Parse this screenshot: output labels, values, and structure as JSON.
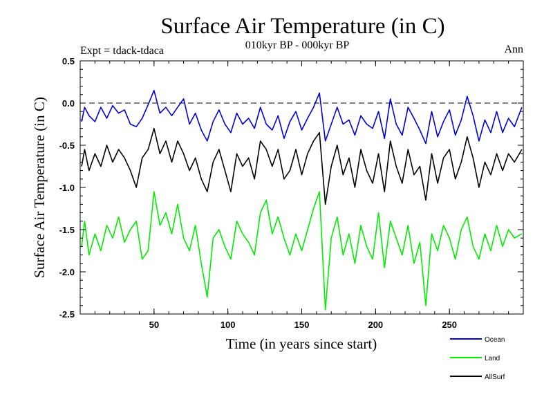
{
  "chart_data": {
    "type": "line",
    "title": "Surface Air Temperature (in C)",
    "subtitle": "010kyr BP - 000kyr BP",
    "experiment_label": "Expt = tdack-tdaca",
    "season_label": "Ann",
    "xlabel": "Time (in years since start)",
    "ylabel": "Surface Air Temperature (in C)",
    "xlim": [
      0,
      300
    ],
    "ylim": [
      -2.5,
      0.5
    ],
    "x_ticks": [
      50,
      100,
      150,
      200,
      250
    ],
    "x_tick_labels": [
      "50",
      "100",
      "150",
      "200",
      "250"
    ],
    "y_ticks": [
      -2.5,
      -2.0,
      -1.5,
      -1.0,
      -0.5,
      0.0,
      0.5
    ],
    "y_tick_labels": [
      "-2.5",
      "-2.0",
      "-1.5",
      "-1.0",
      "-0.5",
      "0.0",
      "0.5"
    ],
    "reference_line": 0.0,
    "x": [
      1,
      3,
      6,
      10,
      14,
      18,
      22,
      26,
      30,
      34,
      38,
      42,
      46,
      50,
      54,
      58,
      62,
      66,
      70,
      74,
      78,
      82,
      86,
      90,
      94,
      98,
      102,
      106,
      110,
      114,
      118,
      122,
      126,
      130,
      134,
      138,
      142,
      146,
      150,
      154,
      158,
      162,
      166,
      170,
      174,
      178,
      182,
      186,
      190,
      194,
      198,
      202,
      206,
      210,
      214,
      218,
      222,
      226,
      230,
      234,
      238,
      242,
      246,
      250,
      254,
      258,
      262,
      266,
      270,
      274,
      278,
      282,
      286,
      290,
      294,
      299
    ],
    "series": [
      {
        "name": "Ocean",
        "color": "#0000dd",
        "values": [
          -0.22,
          -0.05,
          -0.15,
          -0.22,
          -0.05,
          -0.18,
          -0.03,
          -0.12,
          -0.08,
          -0.25,
          -0.28,
          -0.18,
          -0.02,
          0.15,
          -0.12,
          -0.05,
          -0.15,
          -0.05,
          0.05,
          -0.25,
          -0.12,
          -0.32,
          -0.45,
          -0.22,
          -0.08,
          -0.25,
          -0.35,
          -0.12,
          -0.25,
          -0.18,
          -0.3,
          -0.05,
          -0.25,
          -0.32,
          -0.15,
          -0.42,
          -0.22,
          -0.1,
          -0.32,
          -0.18,
          -0.05,
          0.12,
          -0.45,
          -0.25,
          -0.05,
          -0.25,
          -0.2,
          -0.38,
          -0.15,
          -0.25,
          -0.3,
          -0.1,
          -0.42,
          0.05,
          -0.25,
          -0.38,
          -0.05,
          -0.18,
          -0.32,
          -0.48,
          -0.1,
          -0.4,
          -0.22,
          -0.08,
          -0.38,
          -0.2,
          0.08,
          -0.15,
          -0.45,
          -0.2,
          -0.35,
          -0.1,
          -0.35,
          -0.18,
          -0.28,
          -0.05
        ]
      },
      {
        "name": "Land",
        "color": "#00ee00",
        "values": [
          -1.7,
          -1.4,
          -1.8,
          -1.55,
          -1.75,
          -1.45,
          -1.6,
          -1.35,
          -1.65,
          -1.5,
          -1.4,
          -1.85,
          -1.75,
          -1.05,
          -1.45,
          -1.3,
          -1.55,
          -1.2,
          -1.6,
          -1.75,
          -1.45,
          -1.9,
          -2.3,
          -1.6,
          -1.5,
          -1.7,
          -1.85,
          -1.4,
          -1.55,
          -1.65,
          -1.8,
          -1.3,
          -1.15,
          -1.55,
          -1.35,
          -1.6,
          -1.8,
          -1.55,
          -1.75,
          -1.5,
          -1.25,
          -1.05,
          -2.45,
          -1.6,
          -1.35,
          -1.8,
          -1.55,
          -1.9,
          -1.45,
          -1.7,
          -1.85,
          -1.3,
          -1.95,
          -1.4,
          -1.6,
          -1.8,
          -1.45,
          -1.9,
          -1.65,
          -2.4,
          -1.55,
          -1.75,
          -1.45,
          -1.6,
          -1.85,
          -1.5,
          -1.35,
          -1.7,
          -1.85,
          -1.55,
          -1.75,
          -1.45,
          -1.7,
          -1.5,
          -1.6,
          -1.55
        ]
      },
      {
        "name": "AllSurf",
        "color": "#000000",
        "values": [
          -0.75,
          -0.55,
          -0.8,
          -0.6,
          -0.75,
          -0.5,
          -0.7,
          -0.55,
          -0.65,
          -0.8,
          -1.0,
          -0.65,
          -0.55,
          -0.3,
          -0.6,
          -0.45,
          -0.7,
          -0.45,
          -0.6,
          -0.8,
          -0.65,
          -0.9,
          -1.05,
          -0.7,
          -0.55,
          -0.8,
          -1.05,
          -0.6,
          -0.75,
          -0.65,
          -0.9,
          -0.45,
          -0.55,
          -0.75,
          -0.55,
          -0.9,
          -0.8,
          -0.55,
          -0.85,
          -0.6,
          -0.45,
          -0.35,
          -1.2,
          -0.75,
          -0.5,
          -0.85,
          -0.65,
          -1.0,
          -0.55,
          -0.8,
          -0.95,
          -0.6,
          -1.05,
          -0.45,
          -0.75,
          -0.95,
          -0.55,
          -0.85,
          -0.75,
          -1.15,
          -0.6,
          -0.95,
          -0.65,
          -0.55,
          -0.9,
          -0.7,
          -0.4,
          -0.65,
          -1.0,
          -0.7,
          -0.85,
          -0.6,
          -0.8,
          -0.6,
          -0.7,
          -0.55
        ]
      }
    ],
    "legend_position": "bottom-right"
  }
}
